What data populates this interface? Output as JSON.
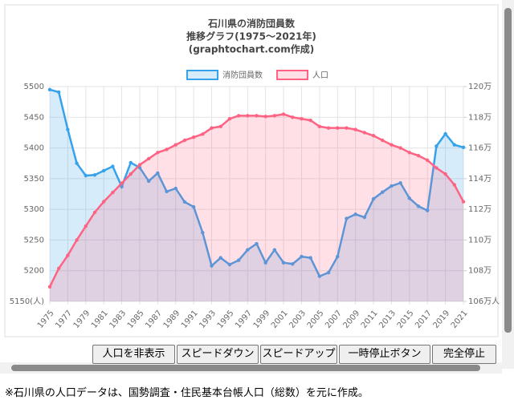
{
  "chart_data": {
    "type": "line",
    "title": [
      "石川県の消防団員数",
      "推移グラフ(1975～2021年)",
      "(graphtochart.com作成)"
    ],
    "x": [
      1975,
      1976,
      1977,
      1978,
      1979,
      1980,
      1981,
      1982,
      1983,
      1984,
      1985,
      1986,
      1987,
      1988,
      1989,
      1990,
      1991,
      1992,
      1993,
      1994,
      1995,
      1996,
      1997,
      1998,
      1999,
      2000,
      2001,
      2002,
      2003,
      2004,
      2005,
      2006,
      2007,
      2008,
      2009,
      2010,
      2011,
      2012,
      2013,
      2014,
      2015,
      2016,
      2017,
      2018,
      2019,
      2020,
      2021
    ],
    "xlim": [
      1975,
      2021
    ],
    "xticks": [
      1975,
      1977,
      1979,
      1981,
      1983,
      1985,
      1987,
      1989,
      1991,
      1993,
      1995,
      1997,
      1999,
      2001,
      2003,
      2005,
      2007,
      2009,
      2011,
      2013,
      2015,
      2017,
      2019,
      2021
    ],
    "series": [
      {
        "name": "消防団員数",
        "color": "#36a2eb",
        "values": [
          5495,
          5491,
          5430,
          5375,
          5355,
          5356,
          5363,
          5370,
          5337,
          5376,
          5368,
          5346,
          5359,
          5329,
          5334,
          5312,
          5304,
          5262,
          5208,
          5221,
          5210,
          5217,
          5234,
          5244,
          5213,
          5234,
          5213,
          5211,
          5223,
          5221,
          5191,
          5197,
          5223,
          5285,
          5292,
          5287,
          5317,
          5328,
          5338,
          5343,
          5318,
          5305,
          5298,
          5403,
          5423,
          5405,
          5401
        ]
      },
      {
        "name": "人口",
        "color": "#ff6384",
        "axis": "y2",
        "values": [
          106.95,
          108.15,
          109.0,
          110.0,
          110.9,
          111.8,
          112.5,
          113.1,
          113.7,
          114.3,
          114.9,
          115.3,
          115.7,
          115.9,
          116.2,
          116.5,
          116.7,
          116.9,
          117.3,
          117.4,
          117.9,
          118.1,
          118.1,
          118.1,
          118.05,
          118.1,
          118.2,
          118.0,
          117.9,
          117.8,
          117.4,
          117.3,
          117.3,
          117.3,
          117.2,
          117.0,
          116.8,
          116.5,
          116.2,
          116.0,
          115.7,
          115.5,
          115.2,
          114.7,
          114.3,
          113.6,
          112.5
        ]
      }
    ],
    "ylim": [
      5150,
      5500
    ],
    "yticks": [
      {
        "value": 5150,
        "label": "5150(人)"
      },
      5200,
      5250,
      5300,
      5350,
      5400,
      5450,
      5500
    ],
    "y2lim": [
      106,
      120
    ],
    "y2ticks": [
      {
        "value": 106,
        "label": "106万人"
      },
      {
        "value": 108,
        "label": "108万"
      },
      {
        "value": 110,
        "label": "110万"
      },
      {
        "value": 112,
        "label": "112万"
      },
      {
        "value": 114,
        "label": "114万"
      },
      {
        "value": 116,
        "label": "116万"
      },
      {
        "value": 118,
        "label": "118万"
      },
      {
        "value": 120,
        "label": "120万"
      }
    ],
    "grid": true,
    "legend": "top"
  },
  "buttons": [
    "人口を非表示",
    "スピードダウン",
    "スピードアップ",
    "一時停止ボタン",
    "完全停止"
  ],
  "note": "※石川県の人口データは、国勢調査・住民基本台帳人口（総数）を元に作成。"
}
